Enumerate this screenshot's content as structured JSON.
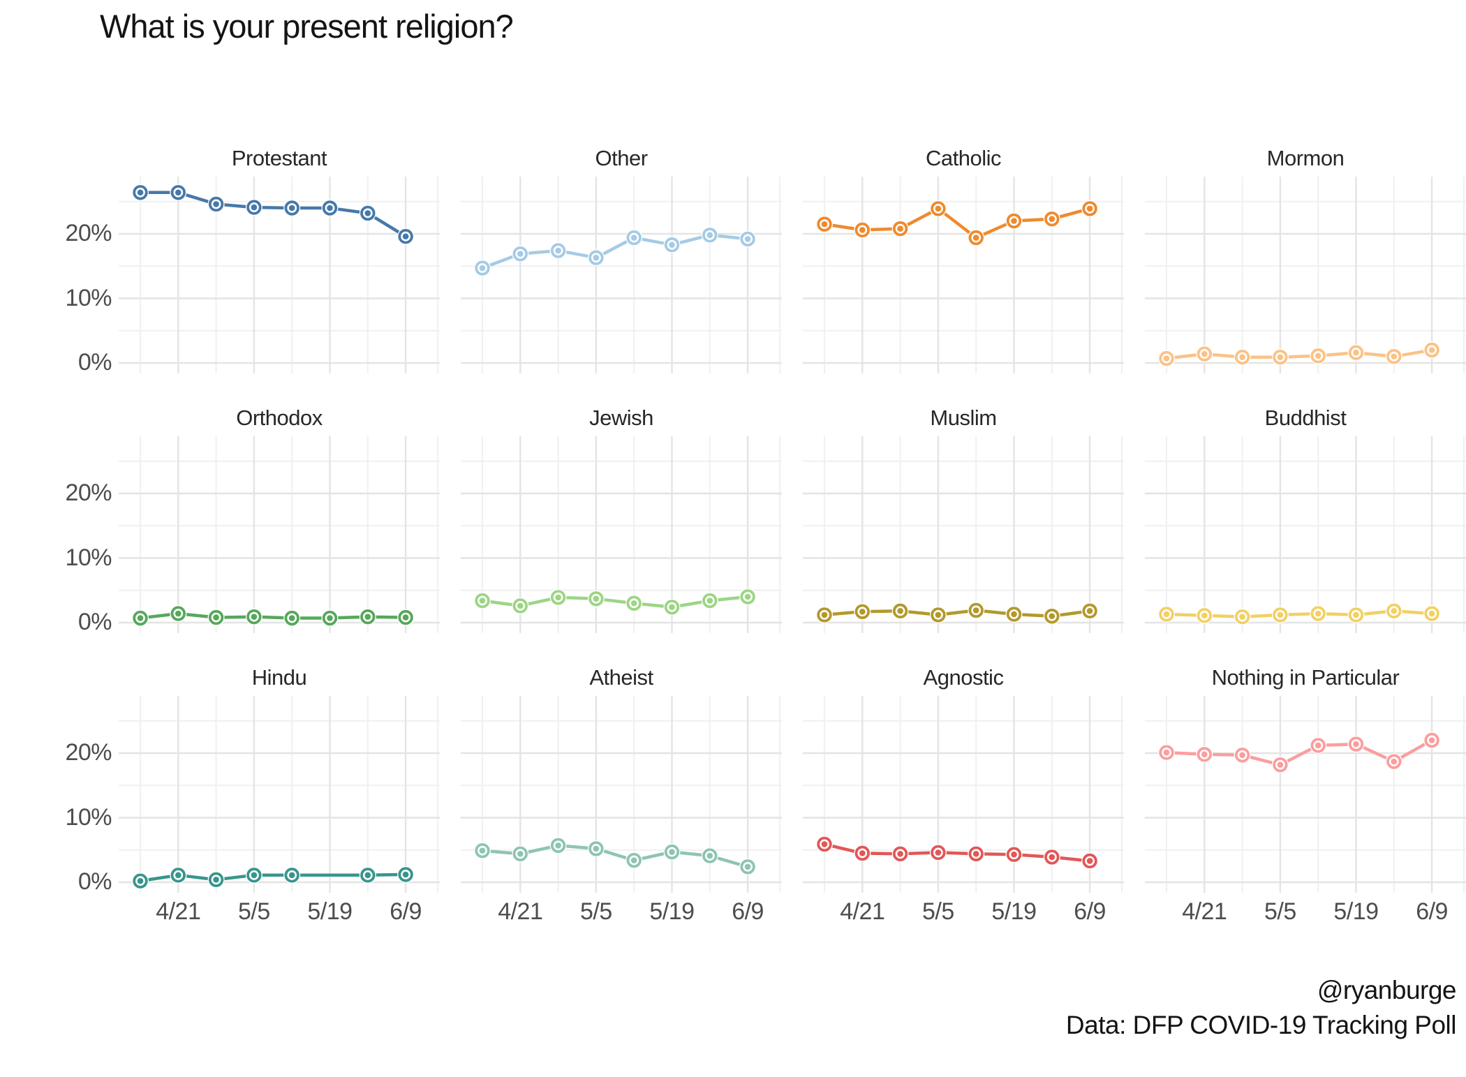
{
  "title": "What is your present religion?",
  "caption": {
    "credit": "@ryanburge",
    "source": "Data: DFP COVID-19 Tracking Poll"
  },
  "chart_data": {
    "type": "line",
    "title": "What is your present religion?",
    "facet_layout": {
      "rows": 3,
      "cols": 4
    },
    "x": [
      1,
      2,
      3,
      4,
      5,
      6,
      7,
      8
    ],
    "x_tick_labels": [
      "4/21",
      "5/5",
      "5/19",
      "6/9"
    ],
    "x_tick_positions": [
      2,
      4,
      6,
      8
    ],
    "y_tick_labels": [
      "0%",
      "10%",
      "20%"
    ],
    "y_tick_values": [
      0,
      10,
      20
    ],
    "y_minor_values": [
      5,
      15,
      25
    ],
    "ylim": [
      -1.6,
      28.9
    ],
    "grid": "major-and-minor",
    "legend_position": "none",
    "unit": "percent",
    "facets": [
      {
        "name": "Protestant",
        "color": "#4778a9",
        "values": [
          26.4,
          26.4,
          24.6,
          24.1,
          24.0,
          24.0,
          23.2,
          19.6
        ]
      },
      {
        "name": "Other",
        "color": "#a5cbe5",
        "values": [
          14.7,
          16.9,
          17.4,
          16.3,
          19.4,
          18.3,
          19.8,
          19.2
        ]
      },
      {
        "name": "Catholic",
        "color": "#ef8a2d",
        "values": [
          21.5,
          20.6,
          20.8,
          23.9,
          19.4,
          22.0,
          22.3,
          23.9
        ]
      },
      {
        "name": "Mormon",
        "color": "#fbc286",
        "values": [
          0.7,
          1.4,
          0.9,
          0.9,
          1.1,
          1.6,
          1.0,
          2.0
        ]
      },
      {
        "name": "Orthodox",
        "color": "#57a75b",
        "values": [
          0.7,
          1.4,
          0.8,
          0.9,
          0.7,
          0.7,
          0.9,
          0.8
        ]
      },
      {
        "name": "Jewish",
        "color": "#9cd584",
        "values": [
          3.4,
          2.6,
          3.9,
          3.7,
          3.0,
          2.4,
          3.4,
          4.0
        ]
      },
      {
        "name": "Muslim",
        "color": "#b2992b",
        "values": [
          1.2,
          1.7,
          1.8,
          1.2,
          1.9,
          1.3,
          1.0,
          1.8
        ]
      },
      {
        "name": "Buddhist",
        "color": "#f2d064",
        "values": [
          1.3,
          1.1,
          0.9,
          1.2,
          1.4,
          1.2,
          1.8,
          1.4
        ]
      },
      {
        "name": "Hindu",
        "color": "#38958c",
        "values": [
          0.2,
          1.1,
          0.4,
          1.1,
          1.1,
          null,
          1.1,
          1.2
        ]
      },
      {
        "name": "Atheist",
        "color": "#8ec4b3",
        "values": [
          4.9,
          4.4,
          5.7,
          5.2,
          3.4,
          4.7,
          4.1,
          2.4
        ]
      },
      {
        "name": "Agnostic",
        "color": "#e25757",
        "values": [
          5.9,
          4.5,
          4.4,
          4.6,
          4.4,
          4.3,
          3.9,
          3.3
        ]
      },
      {
        "name": "Nothing in Particular",
        "color": "#fb9e9e",
        "values": [
          20.1,
          19.8,
          19.7,
          18.2,
          21.2,
          21.4,
          18.7,
          22.0
        ]
      }
    ],
    "colors": {
      "grid_major": "#e4e4e4",
      "grid_minor": "#f0f0f0",
      "axis_text": "#4d4d4d",
      "title_text": "#141414"
    }
  }
}
